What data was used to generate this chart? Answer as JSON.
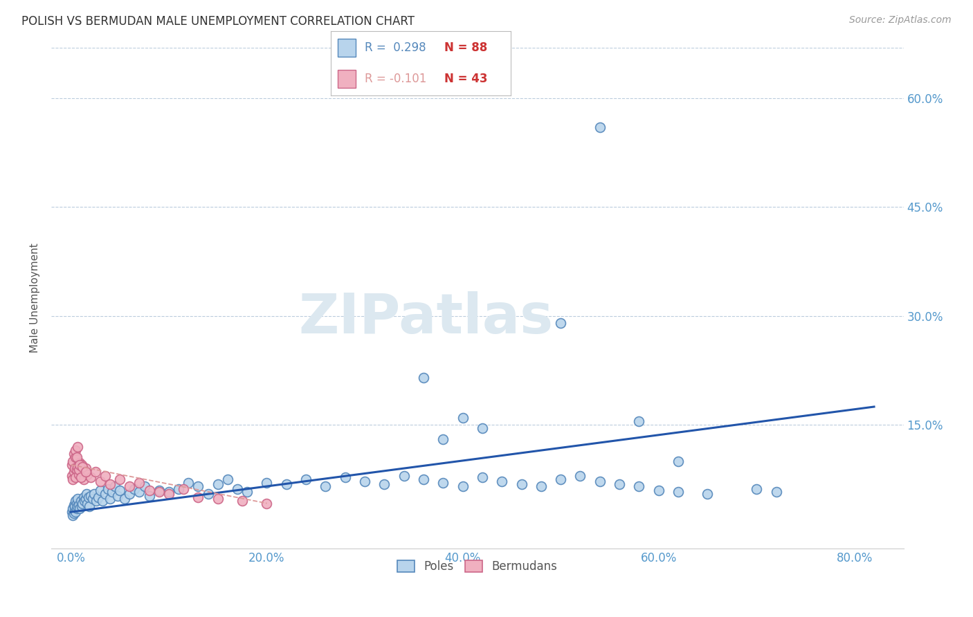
{
  "title": "POLISH VS BERMUDAN MALE UNEMPLOYMENT CORRELATION CHART",
  "source": "Source: ZipAtlas.com",
  "xlabel_ticks": [
    "0.0%",
    "20.0%",
    "40.0%",
    "60.0%",
    "80.0%"
  ],
  "xlabel_tick_vals": [
    0.0,
    0.2,
    0.4,
    0.6,
    0.8
  ],
  "ylabel": "Male Unemployment",
  "ytick_vals": [
    0.0,
    0.15,
    0.3,
    0.45,
    0.6
  ],
  "ytick_labels": [
    "",
    "15.0%",
    "30.0%",
    "45.0%",
    "60.0%"
  ],
  "xlim": [
    -0.02,
    0.85
  ],
  "ylim": [
    -0.02,
    0.67
  ],
  "poles_color": "#b8d4ec",
  "poles_edge_color": "#5588bb",
  "bermudans_color": "#f0b0c0",
  "bermudans_edge_color": "#cc6688",
  "trend_poles_color": "#2255aa",
  "trend_bermudans_color": "#dd9999",
  "watermark_color": "#dce8f0",
  "legend_R_poles_color": "#5588bb",
  "legend_N_poles_color": "#cc3333",
  "legend_R_bermudans_color": "#dd9999",
  "legend_N_bermudans_color": "#cc3333",
  "poles_x": [
    0.001,
    0.002,
    0.002,
    0.003,
    0.003,
    0.004,
    0.004,
    0.005,
    0.005,
    0.006,
    0.006,
    0.007,
    0.007,
    0.008,
    0.009,
    0.01,
    0.011,
    0.012,
    0.013,
    0.014,
    0.015,
    0.016,
    0.017,
    0.018,
    0.019,
    0.02,
    0.022,
    0.024,
    0.026,
    0.028,
    0.03,
    0.032,
    0.035,
    0.038,
    0.04,
    0.042,
    0.045,
    0.048,
    0.05,
    0.055,
    0.06,
    0.065,
    0.07,
    0.075,
    0.08,
    0.09,
    0.1,
    0.11,
    0.12,
    0.13,
    0.14,
    0.15,
    0.16,
    0.17,
    0.18,
    0.2,
    0.22,
    0.24,
    0.26,
    0.28,
    0.3,
    0.32,
    0.34,
    0.36,
    0.38,
    0.4,
    0.42,
    0.44,
    0.46,
    0.48,
    0.5,
    0.52,
    0.54,
    0.56,
    0.58,
    0.6,
    0.62,
    0.65,
    0.7,
    0.72,
    0.36,
    0.38,
    0.4,
    0.42,
    0.5,
    0.54,
    0.58,
    0.62
  ],
  "poles_y": [
    0.03,
    0.035,
    0.025,
    0.028,
    0.04,
    0.032,
    0.038,
    0.03,
    0.045,
    0.035,
    0.042,
    0.038,
    0.048,
    0.04,
    0.035,
    0.045,
    0.038,
    0.042,
    0.05,
    0.045,
    0.048,
    0.055,
    0.042,
    0.05,
    0.038,
    0.052,
    0.048,
    0.055,
    0.045,
    0.05,
    0.06,
    0.045,
    0.055,
    0.062,
    0.048,
    0.058,
    0.065,
    0.052,
    0.06,
    0.048,
    0.055,
    0.062,
    0.058,
    0.065,
    0.052,
    0.06,
    0.058,
    0.062,
    0.07,
    0.065,
    0.055,
    0.068,
    0.075,
    0.062,
    0.058,
    0.07,
    0.068,
    0.075,
    0.065,
    0.078,
    0.072,
    0.068,
    0.08,
    0.075,
    0.07,
    0.065,
    0.078,
    0.072,
    0.068,
    0.065,
    0.075,
    0.08,
    0.072,
    0.068,
    0.065,
    0.06,
    0.058,
    0.055,
    0.062,
    0.058,
    0.215,
    0.13,
    0.16,
    0.145,
    0.29,
    0.56,
    0.155,
    0.1
  ],
  "bermudans_x": [
    0.001,
    0.001,
    0.002,
    0.002,
    0.003,
    0.003,
    0.004,
    0.005,
    0.005,
    0.006,
    0.007,
    0.008,
    0.009,
    0.01,
    0.011,
    0.012,
    0.013,
    0.015,
    0.017,
    0.02,
    0.025,
    0.03,
    0.035,
    0.04,
    0.05,
    0.06,
    0.07,
    0.08,
    0.09,
    0.1,
    0.115,
    0.13,
    0.15,
    0.175,
    0.2,
    0.005,
    0.006,
    0.007,
    0.008,
    0.009,
    0.01,
    0.012,
    0.015
  ],
  "bermudans_y": [
    0.08,
    0.095,
    0.075,
    0.1,
    0.085,
    0.11,
    0.09,
    0.078,
    0.105,
    0.088,
    0.092,
    0.082,
    0.098,
    0.085,
    0.095,
    0.088,
    0.075,
    0.09,
    0.082,
    0.078,
    0.085,
    0.072,
    0.08,
    0.068,
    0.075,
    0.065,
    0.07,
    0.06,
    0.058,
    0.055,
    0.062,
    0.05,
    0.048,
    0.045,
    0.042,
    0.115,
    0.105,
    0.12,
    0.088,
    0.095,
    0.078,
    0.092,
    0.085
  ],
  "trend_poles_x0": 0.0,
  "trend_poles_x1": 0.82,
  "trend_poles_y0": 0.03,
  "trend_poles_y1": 0.175,
  "trend_bermudans_x0": 0.0,
  "trend_bermudans_x1": 0.2,
  "trend_bermudans_y0": 0.095,
  "trend_bermudans_y1": 0.042
}
